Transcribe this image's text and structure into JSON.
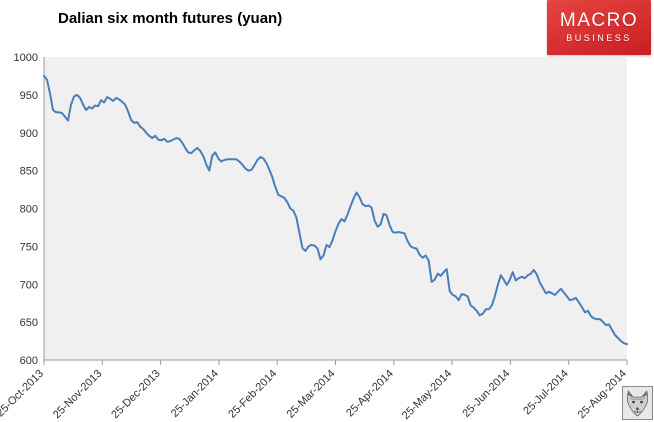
{
  "title": "Dalian six month futures (yuan)",
  "brand": {
    "line1": "MACRO",
    "line2": "BUSINESS",
    "bg_top": "#e64540",
    "bg_bottom": "#c81e24",
    "text_color": "#ffffff"
  },
  "wolf_logo": "wolf-mascot",
  "chart_data": {
    "type": "line",
    "title": "Dalian six month futures (yuan)",
    "xlabel": "",
    "ylabel": "",
    "ylim": [
      600,
      1000
    ],
    "y_ticks": [
      600,
      650,
      700,
      750,
      800,
      850,
      900,
      950,
      1000
    ],
    "x_tick_labels": [
      "25-Oct-2013",
      "25-Nov-2013",
      "25-Dec-2013",
      "25-Jan-2014",
      "25-Feb-2014",
      "25-Mar-2014",
      "25-Apr-2014",
      "25-May-2014",
      "25-Jun-2014",
      "25-Jul-2014",
      "25-Aug-2014"
    ],
    "grid": false,
    "legend": "none",
    "plot_bg": "#f0f0f0",
    "axis_color": "#9b9b9b",
    "tick_label_color": "#333333",
    "series": [
      {
        "name": "Dalian six month futures (yuan)",
        "color": "#4a7ebb",
        "values": [
          975,
          970,
          952,
          930,
          927,
          927,
          926,
          921,
          916,
          937,
          948,
          950,
          946,
          937,
          930,
          934,
          932,
          936,
          935,
          943,
          940,
          947,
          945,
          942,
          946,
          944,
          941,
          937,
          928,
          917,
          913,
          914,
          908,
          905,
          900,
          896,
          893,
          896,
          891,
          890,
          892,
          888,
          889,
          891,
          893,
          892,
          887,
          880,
          874,
          873,
          877,
          880,
          876,
          869,
          858,
          850,
          870,
          874,
          866,
          862,
          864,
          865,
          865,
          865,
          865,
          862,
          858,
          853,
          850,
          851,
          857,
          864,
          868,
          866,
          860,
          851,
          841,
          828,
          818,
          816,
          814,
          808,
          800,
          797,
          788,
          768,
          748,
          744,
          750,
          752,
          751,
          747,
          733,
          738,
          752,
          749,
          758,
          770,
          780,
          786,
          783,
          792,
          803,
          813,
          821,
          815,
          806,
          803,
          804,
          801,
          784,
          776,
          779,
          793,
          791,
          778,
          769,
          768,
          769,
          768,
          767,
          757,
          750,
          748,
          747,
          739,
          735,
          738,
          731,
          703,
          706,
          714,
          711,
          716,
          720,
          691,
          686,
          684,
          679,
          687,
          686,
          684,
          672,
          669,
          665,
          659,
          661,
          667,
          667,
          672,
          684,
          699,
          712,
          706,
          699,
          706,
          716,
          705,
          708,
          710,
          708,
          712,
          714,
          719,
          713,
          702,
          695,
          688,
          690,
          688,
          686,
          690,
          694,
          689,
          684,
          679,
          680,
          682,
          676,
          670,
          663,
          665,
          658,
          655,
          654,
          654,
          650,
          646,
          647,
          640,
          633,
          629,
          625,
          622,
          621
        ]
      }
    ]
  }
}
